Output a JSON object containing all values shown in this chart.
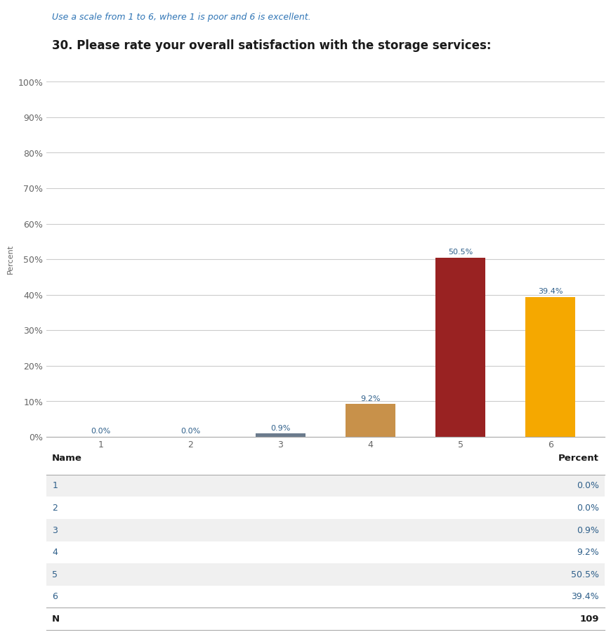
{
  "subtitle": "Use a scale from 1 to 6, where 1 is poor and 6 is excellent.",
  "title": "30. Please rate your overall satisfaction with the storage services:",
  "categories": [
    "1",
    "2",
    "3",
    "4",
    "5",
    "6"
  ],
  "values": [
    0.0,
    0.0,
    0.9,
    9.2,
    50.5,
    39.4
  ],
  "bar_colors": [
    "#5a7fa8",
    "#5a7fa8",
    "#6b7b8d",
    "#c8914a",
    "#992222",
    "#f5a800"
  ],
  "ylabel": "Percent",
  "ylim": [
    0,
    100
  ],
  "yticks": [
    0,
    10,
    20,
    30,
    40,
    50,
    60,
    70,
    80,
    90,
    100
  ],
  "ytick_labels": [
    "0%",
    "10%",
    "20%",
    "30%",
    "40%",
    "50%",
    "60%",
    "70%",
    "80%",
    "90%",
    "100%"
  ],
  "subtitle_color": "#2e74b5",
  "title_color": "#1a1a1a",
  "table_headers": [
    "Name",
    "Percent"
  ],
  "table_rows": [
    [
      "1",
      "0.0%"
    ],
    [
      "2",
      "0.0%"
    ],
    [
      "3",
      "0.9%"
    ],
    [
      "4",
      "9.2%"
    ],
    [
      "5",
      "50.5%"
    ],
    [
      "6",
      "39.4%"
    ]
  ],
  "table_n": [
    "N",
    "109"
  ],
  "table_row_colors": [
    "#f0f0f0",
    "#ffffff",
    "#f0f0f0",
    "#ffffff",
    "#f0f0f0",
    "#ffffff"
  ],
  "grid_color": "#cccccc",
  "background_color": "#ffffff",
  "bar_label_color": "#2e5f8a",
  "annotation_fontsize": 8,
  "axis_tick_fontsize": 9,
  "ylabel_fontsize": 8
}
